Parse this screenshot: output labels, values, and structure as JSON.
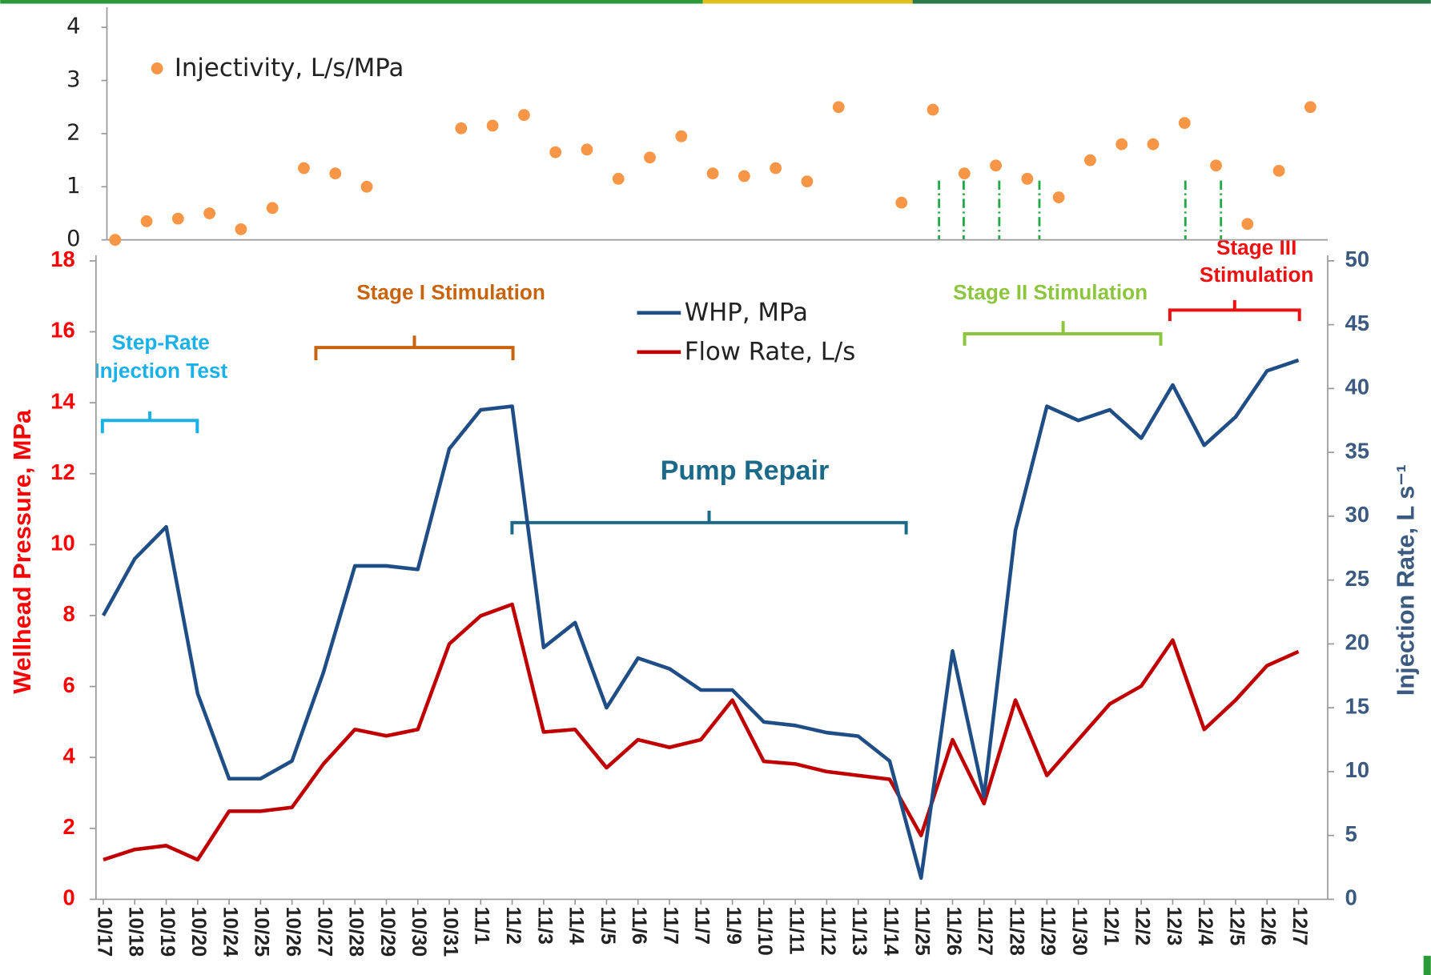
{
  "chart_data": [
    {
      "type": "scatter",
      "series": [
        {
          "name": "Injectivity, L/s/MPa",
          "color": "#f79646",
          "values": [
            0.0,
            0.35,
            0.4,
            0.5,
            0.2,
            0.6,
            1.35,
            1.25,
            1.0,
            null,
            null,
            2.1,
            2.15,
            2.35,
            1.65,
            1.7,
            1.15,
            1.55,
            1.95,
            1.25,
            1.2,
            1.35,
            1.1,
            2.5,
            null,
            0.7,
            2.45,
            1.25,
            1.4,
            1.15,
            0.8,
            1.5,
            1.8,
            1.8,
            2.2,
            1.4,
            0.3,
            1.3,
            2.5
          ]
        }
      ],
      "ylim": [
        0,
        4
      ],
      "yticks": [
        0,
        1,
        2,
        3,
        4
      ]
    },
    {
      "type": "line",
      "categories": [
        "10/17",
        "10/18",
        "10/19",
        "10/20",
        "10/24",
        "10/25",
        "10/26",
        "10/27",
        "10/28",
        "10/29",
        "10/30",
        "10/31",
        "11/1",
        "11/2",
        "11/3",
        "11/4",
        "11/5",
        "11/6",
        "11/7",
        "11/7",
        "11/9",
        "11/10",
        "11/11",
        "11/12",
        "11/13",
        "11/14",
        "11/25",
        "11/26",
        "11/27",
        "11/28",
        "11/29",
        "11/30",
        "12/1",
        "12/2",
        "12/3",
        "12/4",
        "12/5",
        "12/6",
        "12/7"
      ],
      "series": [
        {
          "name": "WHP, MPa",
          "color": "#1f4e87",
          "axis": "y",
          "values": [
            8.0,
            9.6,
            10.5,
            5.8,
            3.4,
            3.4,
            3.9,
            6.4,
            9.4,
            9.4,
            9.3,
            12.7,
            13.8,
            13.9,
            7.1,
            7.8,
            5.4,
            6.8,
            6.5,
            5.9,
            5.9,
            5.0,
            4.9,
            4.7,
            4.6,
            3.9,
            0.6,
            7.0,
            2.9,
            10.4,
            13.9,
            13.5,
            13.8,
            13.0,
            14.5,
            12.8,
            13.6,
            14.9,
            15.2
          ]
        },
        {
          "name": "Flow Rate, L/s",
          "color": "#c00000",
          "axis": "y2",
          "values": [
            3.1,
            3.9,
            4.2,
            3.1,
            6.9,
            6.9,
            7.2,
            10.6,
            13.3,
            12.8,
            13.3,
            20.0,
            22.2,
            23.1,
            13.1,
            13.3,
            10.3,
            12.5,
            11.9,
            12.5,
            15.6,
            10.8,
            10.6,
            10.0,
            9.7,
            9.4,
            5.0,
            12.5,
            7.5,
            15.6,
            9.7,
            12.5,
            15.3,
            16.7,
            20.3,
            13.3,
            15.6,
            18.3,
            19.4
          ]
        }
      ],
      "ylabel": "Wellhead Pressure, MPa",
      "y2label": "Injection Rate, L s⁻¹",
      "ylim": [
        0,
        18
      ],
      "yticks": [
        0,
        2,
        4,
        6,
        8,
        10,
        12,
        14,
        16,
        18
      ],
      "y2lim": [
        0,
        50
      ],
      "y2ticks": [
        0,
        5,
        10,
        15,
        20,
        25,
        30,
        35,
        40,
        45,
        50
      ],
      "annotations": {
        "step_rate": [
          "Step-Rate",
          "Injection Test"
        ],
        "stage1": "Stage I Stimulation",
        "pump_repair": "Pump Repair",
        "stage2": "Stage II Stimulation",
        "stage3": [
          "Stage III",
          "Stimulation"
        ]
      }
    }
  ]
}
